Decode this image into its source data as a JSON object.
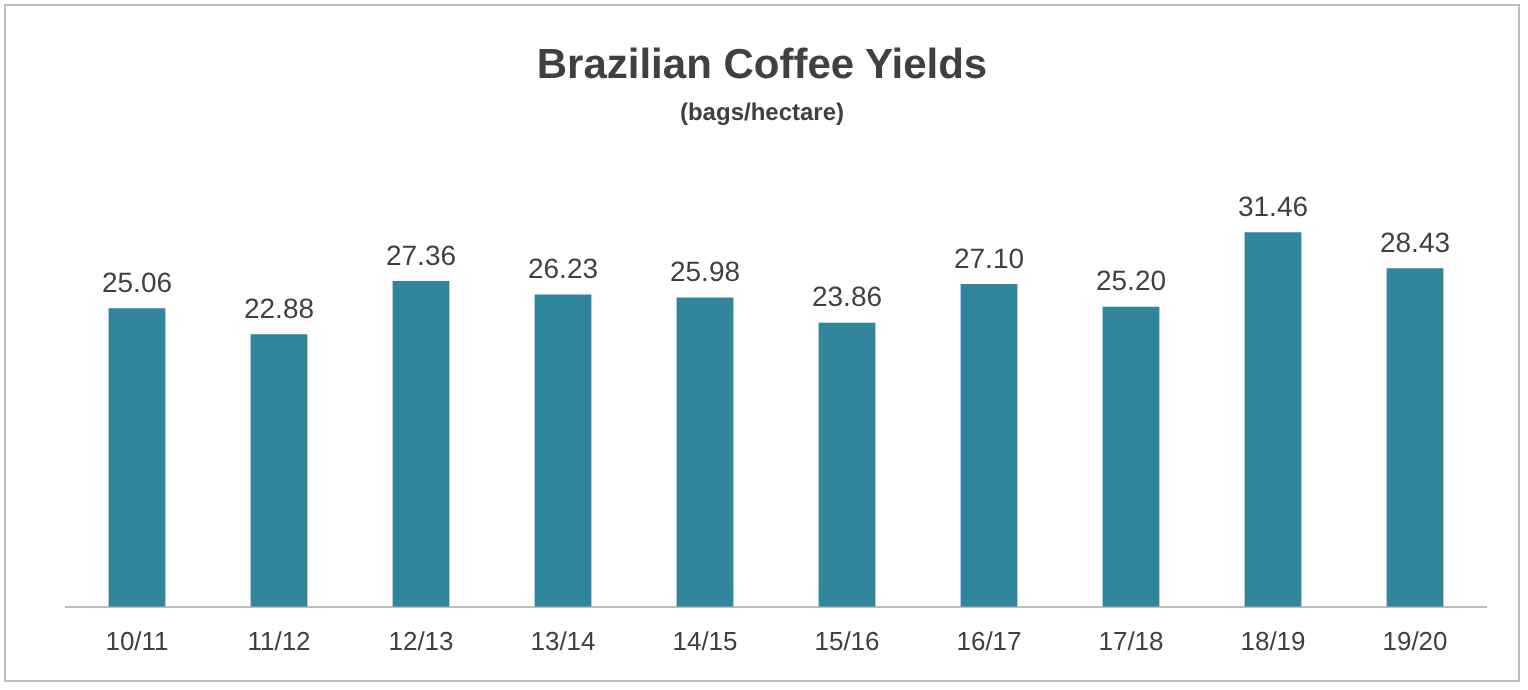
{
  "chart_data": {
    "type": "bar",
    "title": "Brazilian Coffee Yields",
    "subtitle": "(bags/hectare)",
    "categories": [
      "10/11",
      "11/12",
      "12/13",
      "13/14",
      "14/15",
      "15/16",
      "16/17",
      "17/18",
      "18/19",
      "19/20"
    ],
    "values": [
      25.06,
      22.88,
      27.36,
      26.23,
      25.98,
      23.86,
      27.1,
      25.2,
      31.46,
      28.43
    ],
    "value_labels": [
      "25.06",
      "22.88",
      "27.36",
      "26.23",
      "25.98",
      "23.86",
      "27.10",
      "25.20",
      "31.46",
      "28.43"
    ],
    "color": "#31859c",
    "grid": false,
    "legend": false
  }
}
